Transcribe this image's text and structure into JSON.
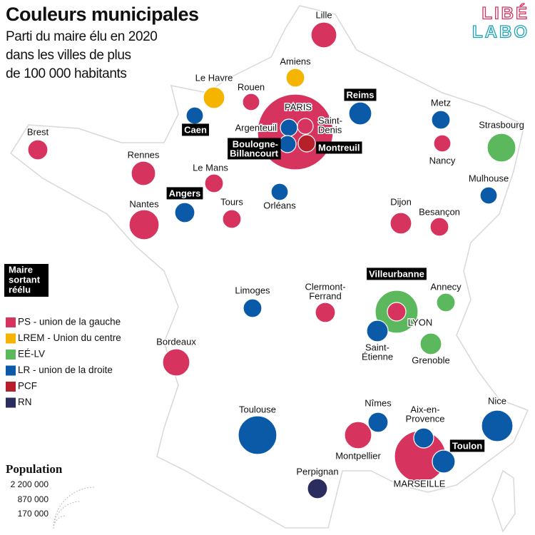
{
  "header": {
    "title": "Couleurs municipales",
    "subtitle": [
      "Parti du maire élu en 2020",
      "dans les villes de plus",
      "de 100 000 habitants"
    ]
  },
  "logo": [
    "LIBÉ",
    "LABO"
  ],
  "legend": {
    "reelected": [
      "Maire",
      "sortant",
      "réélu"
    ],
    "parties": [
      {
        "name": "PS - union de la gauche",
        "color": "#d6335f"
      },
      {
        "name": "LREM - Union du centre",
        "color": "#f5b400"
      },
      {
        "name": "EÉ-LV",
        "color": "#5cb85c"
      },
      {
        "name": "LR - union de la droite",
        "color": "#0b5aa8"
      },
      {
        "name": "PCF",
        "color": "#b5202b"
      },
      {
        "name": "RN",
        "color": "#2b2d5e"
      }
    ]
  },
  "population_legend": {
    "title": "Population",
    "values": [
      "2 200 000",
      "870 000",
      "170 000"
    ]
  },
  "cities": [
    {
      "label": [
        "PARIS"
      ],
      "color": "#d6335f",
      "reelected": false
    },
    {
      "label": [
        "MARSEILLE"
      ],
      "color": "#d6335f",
      "reelected": false
    },
    {
      "label": [
        "LYON"
      ],
      "color": "#5cb85c",
      "reelected": false
    },
    {
      "label": [
        "Villeurbanne"
      ],
      "color": "#d6335f",
      "reelected": true
    },
    {
      "label": [
        "Lille"
      ],
      "color": "#d6335f",
      "reelected": false
    },
    {
      "label": [
        "Amiens"
      ],
      "color": "#f5b400",
      "reelected": false
    },
    {
      "label": [
        "Le Havre"
      ],
      "color": "#f5b400",
      "reelected": false
    },
    {
      "label": [
        "Rouen"
      ],
      "color": "#d6335f",
      "reelected": false
    },
    {
      "label": [
        "Caen"
      ],
      "color": "#0b5aa8",
      "reelected": true
    },
    {
      "label": [
        "Brest"
      ],
      "color": "#d6335f",
      "reelected": false
    },
    {
      "label": [
        "Rennes"
      ],
      "color": "#d6335f",
      "reelected": false
    },
    {
      "label": [
        "Le Mans"
      ],
      "color": "#d6335f",
      "reelected": false
    },
    {
      "label": [
        "Angers"
      ],
      "color": "#0b5aa8",
      "reelected": true
    },
    {
      "label": [
        "Nantes"
      ],
      "color": "#d6335f",
      "reelected": false
    },
    {
      "label": [
        "Tours"
      ],
      "color": "#d6335f",
      "reelected": false
    },
    {
      "label": [
        "Orléans"
      ],
      "color": "#0b5aa8",
      "reelected": false
    },
    {
      "label": [
        "Argenteuil"
      ],
      "color": "#0b5aa8",
      "reelected": false
    },
    {
      "label": [
        "Saint-",
        "Denis"
      ],
      "color": "#d6335f",
      "reelected": false
    },
    {
      "label": [
        "Boulogne-",
        "Billancourt"
      ],
      "color": "#0b5aa8",
      "reelected": true
    },
    {
      "label": [
        "Montreuil"
      ],
      "color": "#b5202b",
      "reelected": true
    },
    {
      "label": [
        "Reims"
      ],
      "color": "#0b5aa8",
      "reelected": true
    },
    {
      "label": [
        "Metz"
      ],
      "color": "#0b5aa8",
      "reelected": false
    },
    {
      "label": [
        "Nancy"
      ],
      "color": "#d6335f",
      "reelected": false
    },
    {
      "label": [
        "Strasbourg"
      ],
      "color": "#5cb85c",
      "reelected": false
    },
    {
      "label": [
        "Mulhouse"
      ],
      "color": "#0b5aa8",
      "reelected": false
    },
    {
      "label": [
        "Dijon"
      ],
      "color": "#d6335f",
      "reelected": false
    },
    {
      "label": [
        "Besançon"
      ],
      "color": "#d6335f",
      "reelected": false
    },
    {
      "label": [
        "Annecy"
      ],
      "color": "#5cb85c",
      "reelected": false
    },
    {
      "label": [
        "Saint-",
        "Étienne"
      ],
      "color": "#0b5aa8",
      "reelected": false
    },
    {
      "label": [
        "Grenoble"
      ],
      "color": "#5cb85c",
      "reelected": false
    },
    {
      "label": [
        "Clermont-",
        "Ferrand"
      ],
      "color": "#d6335f",
      "reelected": false
    },
    {
      "label": [
        "Limoges"
      ],
      "color": "#0b5aa8",
      "reelected": false
    },
    {
      "label": [
        "Bordeaux"
      ],
      "color": "#d6335f",
      "reelected": false
    },
    {
      "label": [
        "Toulouse"
      ],
      "color": "#0b5aa8",
      "reelected": false
    },
    {
      "label": [
        "Nîmes"
      ],
      "color": "#0b5aa8",
      "reelected": false
    },
    {
      "label": [
        "Montpellier"
      ],
      "color": "#d6335f",
      "reelected": false
    },
    {
      "label": [
        "Aix-en-",
        "Provence"
      ],
      "color": "#0b5aa8",
      "reelected": false
    },
    {
      "label": [
        "Toulon"
      ],
      "color": "#0b5aa8",
      "reelected": true
    },
    {
      "label": [
        "Nice"
      ],
      "color": "#0b5aa8",
      "reelected": false
    },
    {
      "label": [
        "Perpignan"
      ],
      "color": "#2b2d5e",
      "reelected": false
    }
  ]
}
